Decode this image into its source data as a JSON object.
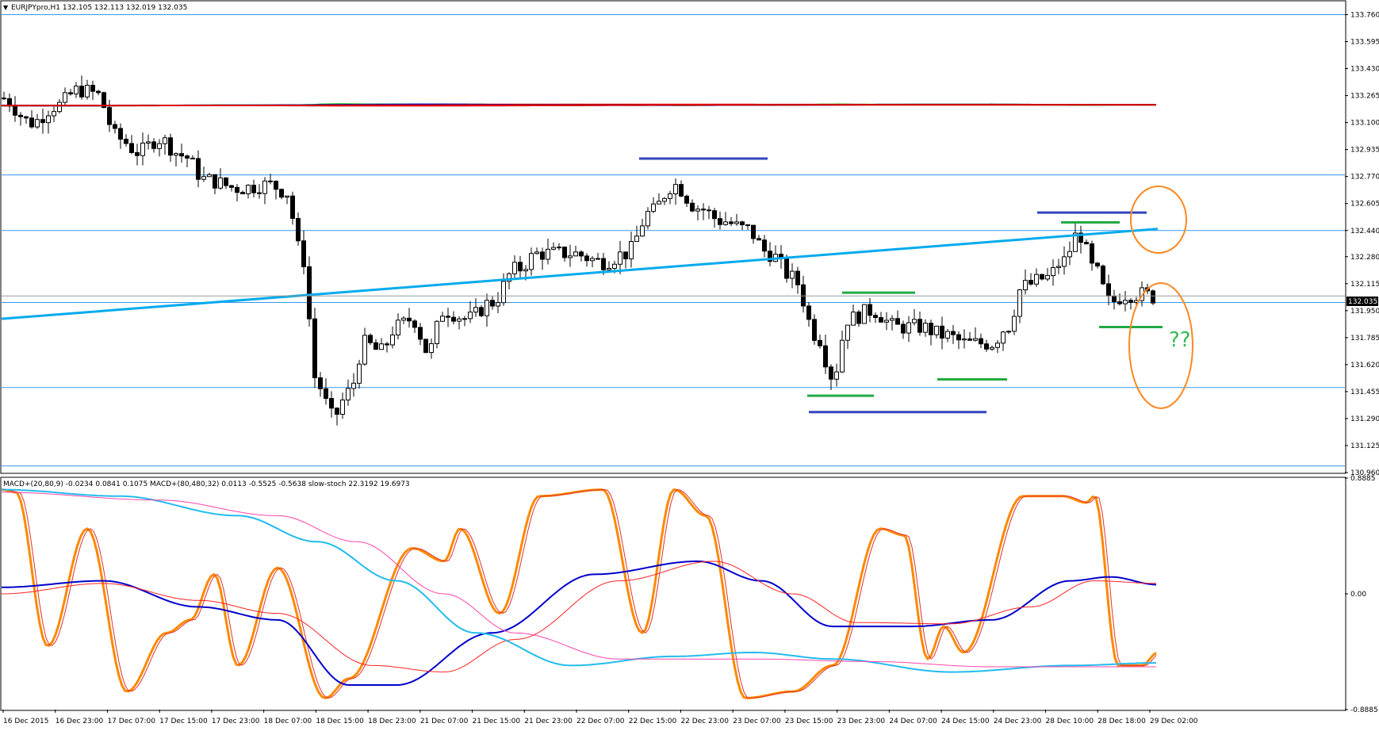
{
  "header": {
    "symbol_info": "EURJPYpro,H1  132.105 132.113 132.019 132.035"
  },
  "current_price_label": "132.035",
  "question_marks": "??",
  "macd_header": "MACD+(20,80,9) -0.0234 0.0841 0.1075   MACD+(80,480,32) 0.0113 -0.5525 -0.5638   slow-stoch 22.3192 19.6973",
  "colors": {
    "background": "#ffffff",
    "candle": "#000000",
    "ma_fast": "#00cc00",
    "ma_mid": "#0000cc",
    "ma_slow": "#dd0000",
    "bollinger_inner": "#2244ee",
    "bollinger_outer": "#ee2222",
    "trendline": "#00aaee",
    "horizontal_level": "#3399ee",
    "drawn_blue": "#3344bb",
    "drawn_green": "#22aa44",
    "annotation_circle": "#ff8822",
    "stoch_main": "#ff8800",
    "stoch_signal": "#dd3333",
    "macd_fast": "#0000cc",
    "macd_signal": "#ff2222",
    "macd_slow": "#22bbee",
    "macd_slow_signal": "#ff44aa"
  },
  "chart_data": [
    {
      "type": "candlestick",
      "title": "EURJPYpro,H1",
      "ylim": [
        130.96,
        133.84
      ],
      "y_ticks": [
        "133.760",
        "133.595",
        "133.430",
        "133.265",
        "133.100",
        "132.935",
        "132.770",
        "132.605",
        "132.440",
        "132.280",
        "132.115",
        "131.950",
        "131.785",
        "131.620",
        "131.455",
        "131.290",
        "131.125",
        "130.960"
      ],
      "last_price": 132.035,
      "horizontal_levels": [
        133.76,
        132.78,
        132.44,
        132.0,
        131.48,
        131.0
      ],
      "x_labels": [
        "16 Dec 2015",
        "16 Dec 23:00",
        "17 Dec 07:00",
        "17 Dec 15:00",
        "17 Dec 23:00",
        "18 Dec 07:00",
        "18 Dec 15:00",
        "18 Dec 23:00",
        "21 Dec 07:00",
        "21 Dec 15:00",
        "21 Dec 23:00",
        "22 Dec 07:00",
        "22 Dec 15:00",
        "22 Dec 23:00",
        "23 Dec 07:00",
        "23 Dec 15:00",
        "23 Dec 23:00",
        "24 Dec 07:00",
        "24 Dec 15:00",
        "24 Dec 23:00",
        "28 Dec 10:00",
        "28 Dec 18:00",
        "29 Dec 02:00"
      ]
    },
    {
      "type": "line",
      "title": "MACD+(20,80,9)  MACD+(80,480,32)  slow-stoch",
      "ylim": [
        -0.8885,
        0.8885
      ],
      "y_ticks": [
        "0.8885",
        "0.00",
        "-0.8885"
      ]
    }
  ]
}
